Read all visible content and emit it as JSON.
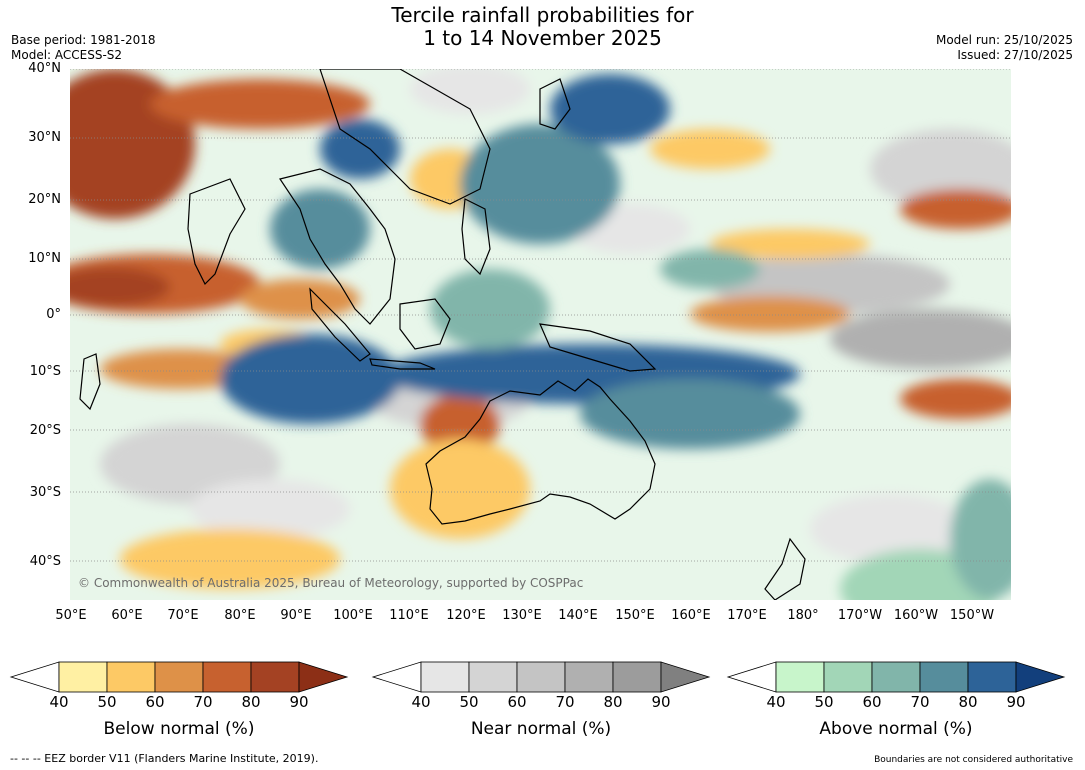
{
  "header": {
    "title_line1": "Tercile rainfall probabilities for",
    "title_line2": "1 to 14 November 2025",
    "base_period": "Base period: 1981-2018",
    "model": "Model: ACCESS-S2",
    "model_run": "Model run: 25/10/2025",
    "issued": "Issued: 27/10/2025"
  },
  "map": {
    "copyright": "© Commonwealth of Australia 2025, Bureau of Meteorology, supported by COSPPac",
    "lat_labels": [
      "40°N",
      "30°N",
      "20°N",
      "10°N",
      "0°",
      "10°S",
      "20°S",
      "30°S",
      "40°S"
    ],
    "lon_labels": [
      "50°E",
      "60°E",
      "70°E",
      "80°E",
      "90°E",
      "100°E",
      "110°E",
      "120°E",
      "130°E",
      "140°E",
      "150°E",
      "160°E",
      "170°E",
      "180°",
      "170°W",
      "160°W",
      "150°W"
    ],
    "colors": {
      "below": [
        "#ffffff",
        "#fff0a3",
        "#fdc965",
        "#de9148",
        "#c7612f",
        "#a44223",
        "#8c2f16"
      ],
      "near": [
        "#ffffff",
        "#e6e6e6",
        "#d4d4d4",
        "#c4c4c4",
        "#b0b0b0",
        "#9c9c9c",
        "#808080"
      ],
      "above": [
        "#ffffff",
        "#c8f5cb",
        "#a2d6b7",
        "#81b5aa",
        "#568d9c",
        "#2d6398",
        "#123f7c"
      ]
    }
  },
  "legend": {
    "ticks": [
      "40",
      "50",
      "60",
      "70",
      "80",
      "90"
    ],
    "below_title": "Below normal (%)",
    "near_title": "Near normal (%)",
    "above_title": "Above normal (%)"
  },
  "footer": {
    "eez_note": "--  --  -- EEZ border V11 (Flanders Marine Institute, 2019).",
    "disclaimer": "Boundaries are not considered authoritative"
  }
}
